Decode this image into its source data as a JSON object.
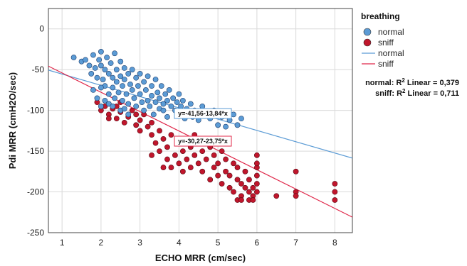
{
  "chart_data": {
    "type": "scatter",
    "title": "",
    "xlabel": "ECHO MRR (cm/sec)",
    "ylabel": "Pdi MRR (cmH2O/sec)",
    "xlim": [
      0.65,
      8.45
    ],
    "ylim": [
      -250,
      25
    ],
    "xticks": [
      1,
      2,
      3,
      4,
      5,
      6,
      7,
      8
    ],
    "yticks": [
      0,
      -50,
      -100,
      -150,
      -200,
      -250
    ],
    "grid": true,
    "legend": {
      "title": "breathing",
      "position": "right",
      "items": [
        {
          "label": "normal",
          "kind": "marker",
          "color": "#5b9bd5"
        },
        {
          "label": "sniff",
          "kind": "marker",
          "color": "#c0162c"
        },
        {
          "label": "normal",
          "kind": "line",
          "color": "#5b9bd5"
        },
        {
          "label": "sniff",
          "kind": "line",
          "color": "#e0284a"
        }
      ]
    },
    "r2_labels": [
      {
        "prefix": "normal: R",
        "sup": "2",
        "suffix": " Linear = 0,379"
      },
      {
        "prefix": "sniff: R",
        "sup": "2",
        "suffix": " Linear = 0,711"
      }
    ],
    "series": [
      {
        "name": "normal",
        "color": "#5b9bd5",
        "stroke": "#1f3f6e",
        "fit": {
          "intercept": -41.56,
          "slope": -13.84,
          "label": "y=-41,56-13,84*x",
          "line_color": "#5b9bd5"
        },
        "points": [
          [
            1.3,
            -35
          ],
          [
            1.5,
            -40
          ],
          [
            1.6,
            -38
          ],
          [
            1.7,
            -45
          ],
          [
            1.75,
            -55
          ],
          [
            1.8,
            -32
          ],
          [
            1.85,
            -48
          ],
          [
            1.9,
            -60
          ],
          [
            1.95,
            -38
          ],
          [
            2.0,
            -28
          ],
          [
            2.0,
            -45
          ],
          [
            2.05,
            -62
          ],
          [
            2.1,
            -50
          ],
          [
            2.1,
            -70
          ],
          [
            2.15,
            -35
          ],
          [
            2.2,
            -55
          ],
          [
            2.2,
            -80
          ],
          [
            2.25,
            -42
          ],
          [
            2.3,
            -60
          ],
          [
            2.3,
            -72
          ],
          [
            2.35,
            -30
          ],
          [
            2.35,
            -85
          ],
          [
            2.4,
            -50
          ],
          [
            2.4,
            -65
          ],
          [
            2.45,
            -78
          ],
          [
            2.5,
            -40
          ],
          [
            2.5,
            -58
          ],
          [
            2.55,
            -70
          ],
          [
            2.55,
            -88
          ],
          [
            2.6,
            -48
          ],
          [
            2.6,
            -62
          ],
          [
            2.65,
            -80
          ],
          [
            2.7,
            -55
          ],
          [
            2.7,
            -92
          ],
          [
            2.75,
            -68
          ],
          [
            2.8,
            -50
          ],
          [
            2.8,
            -75
          ],
          [
            2.85,
            -85
          ],
          [
            2.9,
            -60
          ],
          [
            2.9,
            -95
          ],
          [
            2.95,
            -70
          ],
          [
            3.0,
            -55
          ],
          [
            3.0,
            -80
          ],
          [
            3.05,
            -90
          ],
          [
            3.1,
            -65
          ],
          [
            3.1,
            -100
          ],
          [
            3.15,
            -75
          ],
          [
            3.2,
            -58
          ],
          [
            3.2,
            -88
          ],
          [
            3.25,
            -95
          ],
          [
            3.3,
            -70
          ],
          [
            3.3,
            -82
          ],
          [
            3.35,
            -105
          ],
          [
            3.4,
            -62
          ],
          [
            3.4,
            -90
          ],
          [
            3.45,
            -78
          ],
          [
            3.5,
            -98
          ],
          [
            3.5,
            -85
          ],
          [
            3.55,
            -70
          ],
          [
            3.6,
            -92
          ],
          [
            3.6,
            -100
          ],
          [
            3.65,
            -80
          ],
          [
            3.7,
            -88
          ],
          [
            3.7,
            -108
          ],
          [
            3.75,
            -75
          ],
          [
            3.8,
            -95
          ],
          [
            3.85,
            -85
          ],
          [
            3.9,
            -100
          ],
          [
            3.95,
            -90
          ],
          [
            4.0,
            -80
          ],
          [
            4.0,
            -105
          ],
          [
            4.05,
            -95
          ],
          [
            4.1,
            -88
          ],
          [
            4.15,
            -110
          ],
          [
            4.2,
            -98
          ],
          [
            4.3,
            -92
          ],
          [
            4.35,
            -108
          ],
          [
            4.4,
            -100
          ],
          [
            4.5,
            -112
          ],
          [
            4.6,
            -95
          ],
          [
            4.7,
            -105
          ],
          [
            4.8,
            -110
          ],
          [
            4.9,
            -100
          ],
          [
            5.0,
            -118
          ],
          [
            5.1,
            -108
          ],
          [
            5.2,
            -120
          ],
          [
            5.3,
            -112
          ],
          [
            5.4,
            -105
          ],
          [
            5.5,
            -118
          ],
          [
            5.6,
            -110
          ],
          [
            2.0,
            -72
          ],
          [
            2.1,
            -88
          ],
          [
            2.2,
            -92
          ],
          [
            2.3,
            -95
          ],
          [
            2.5,
            -100
          ],
          [
            2.6,
            -98
          ],
          [
            2.7,
            -105
          ],
          [
            1.9,
            -85
          ],
          [
            1.8,
            -75
          ],
          [
            2.0,
            -95
          ]
        ]
      },
      {
        "name": "sniff",
        "color": "#c0162c",
        "stroke": "#5a0a14",
        "fit": {
          "intercept": -30.27,
          "slope": -23.75,
          "label": "y=-30,27-23,75*x",
          "line_color": "#e0284a"
        },
        "points": [
          [
            1.9,
            -90
          ],
          [
            2.0,
            -100
          ],
          [
            2.1,
            -95
          ],
          [
            2.2,
            -105
          ],
          [
            2.3,
            -98
          ],
          [
            2.4,
            -110
          ],
          [
            2.5,
            -102
          ],
          [
            2.6,
            -115
          ],
          [
            2.7,
            -108
          ],
          [
            2.8,
            -100
          ],
          [
            2.9,
            -118
          ],
          [
            3.0,
            -112
          ],
          [
            3.0,
            -125
          ],
          [
            3.1,
            -105
          ],
          [
            3.2,
            -120
          ],
          [
            3.3,
            -130
          ],
          [
            3.3,
            -115
          ],
          [
            3.4,
            -140
          ],
          [
            3.5,
            -125
          ],
          [
            3.5,
            -150
          ],
          [
            3.6,
            -135
          ],
          [
            3.7,
            -160
          ],
          [
            3.7,
            -145
          ],
          [
            3.8,
            -130
          ],
          [
            3.8,
            -170
          ],
          [
            3.9,
            -155
          ],
          [
            4.0,
            -140
          ],
          [
            4.0,
            -165
          ],
          [
            4.1,
            -150
          ],
          [
            4.1,
            -175
          ],
          [
            4.2,
            -135
          ],
          [
            4.2,
            -160
          ],
          [
            4.3,
            -145
          ],
          [
            4.3,
            -170
          ],
          [
            4.4,
            -155
          ],
          [
            4.4,
            -130
          ],
          [
            4.5,
            -165
          ],
          [
            4.5,
            -140
          ],
          [
            4.6,
            -150
          ],
          [
            4.6,
            -175
          ],
          [
            4.7,
            -135
          ],
          [
            4.7,
            -160
          ],
          [
            4.8,
            -145
          ],
          [
            4.8,
            -185
          ],
          [
            4.9,
            -155
          ],
          [
            4.9,
            -170
          ],
          [
            5.0,
            -140
          ],
          [
            5.0,
            -165
          ],
          [
            5.0,
            -180
          ],
          [
            5.1,
            -150
          ],
          [
            5.1,
            -190
          ],
          [
            5.2,
            -175
          ],
          [
            5.2,
            -160
          ],
          [
            5.3,
            -195
          ],
          [
            5.3,
            -180
          ],
          [
            5.4,
            -165
          ],
          [
            5.4,
            -200
          ],
          [
            5.5,
            -185
          ],
          [
            5.5,
            -170
          ],
          [
            5.6,
            -205
          ],
          [
            5.6,
            -190
          ],
          [
            5.7,
            -175
          ],
          [
            5.7,
            -195
          ],
          [
            5.8,
            -200
          ],
          [
            5.8,
            -185
          ],
          [
            5.9,
            -205
          ],
          [
            5.9,
            -195
          ],
          [
            6.0,
            -190
          ],
          [
            6.0,
            -170
          ],
          [
            6.0,
            -180
          ],
          [
            6.0,
            -200
          ],
          [
            6.0,
            -165
          ],
          [
            6.0,
            -155
          ],
          [
            6.5,
            -205
          ],
          [
            7.0,
            -175
          ],
          [
            7.0,
            -200
          ],
          [
            7.0,
            -205
          ],
          [
            8.0,
            -190
          ],
          [
            8.0,
            -200
          ],
          [
            8.0,
            -210
          ],
          [
            5.5,
            -210
          ],
          [
            5.6,
            -210
          ],
          [
            5.8,
            -210
          ],
          [
            5.9,
            -210
          ],
          [
            3.6,
            -170
          ],
          [
            3.3,
            -155
          ],
          [
            2.5,
            -90
          ],
          [
            2.2,
            -110
          ],
          [
            2.4,
            -95
          ],
          [
            2.9,
            -105
          ]
        ]
      }
    ]
  }
}
